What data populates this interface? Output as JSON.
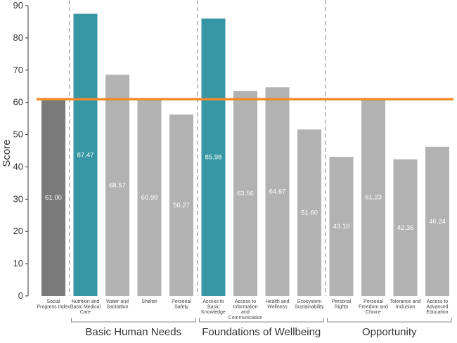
{
  "chart_data": {
    "type": "bar",
    "ylabel": "Score",
    "ylim": [
      0,
      90
    ],
    "yticks": [
      0,
      10,
      20,
      30,
      40,
      50,
      60,
      70,
      80,
      90
    ],
    "categories": [
      [
        "Social",
        "Progress Index"
      ],
      [
        "Nutrition and",
        "Basic Medical",
        "Care"
      ],
      [
        "Water and",
        "Sanitation"
      ],
      [
        "Shelter"
      ],
      [
        "Personal",
        "Safety"
      ],
      [
        "Access to",
        "Basic",
        "Knowledge"
      ],
      [
        "Access to",
        "Information",
        "and",
        "Communication"
      ],
      [
        "Health and",
        "Wellness"
      ],
      [
        "Ecosystem",
        "Sustainability"
      ],
      [
        "Personal",
        "Rights"
      ],
      [
        "Personal",
        "Freedom and",
        "Choice"
      ],
      [
        "Tolerance and",
        "Inclusion"
      ],
      [
        "Access to",
        "Advanced",
        "Education"
      ]
    ],
    "values": [
      61.0,
      87.47,
      68.57,
      60.99,
      56.27,
      85.98,
      63.56,
      64.67,
      51.6,
      43.1,
      61.23,
      42.36,
      46.24
    ],
    "value_labels": [
      "61.00",
      "87.47",
      "68.57",
      "60.99",
      "56.27",
      "85.98",
      "63.56",
      "64.67",
      "51.60",
      "43.10",
      "61.23",
      "42.36",
      "46.24"
    ],
    "bar_colors": [
      "#7a7a7a",
      "#3696a3",
      "#b2b2b2",
      "#b2b2b2",
      "#b2b2b2",
      "#3696a3",
      "#b2b2b2",
      "#b2b2b2",
      "#b2b2b2",
      "#b2b2b2",
      "#b2b2b2",
      "#b2b2b2",
      "#b2b2b2"
    ],
    "reference_line": {
      "value": 61.0,
      "color": "#f08a2c"
    },
    "groups": [
      {
        "label": "Basic Human Needs",
        "start": 1,
        "end": 4
      },
      {
        "label": "Foundations of Wellbeing",
        "start": 5,
        "end": 8
      },
      {
        "label": "Opportunity",
        "start": 9,
        "end": 12
      }
    ],
    "grid": false,
    "legend": "none"
  }
}
